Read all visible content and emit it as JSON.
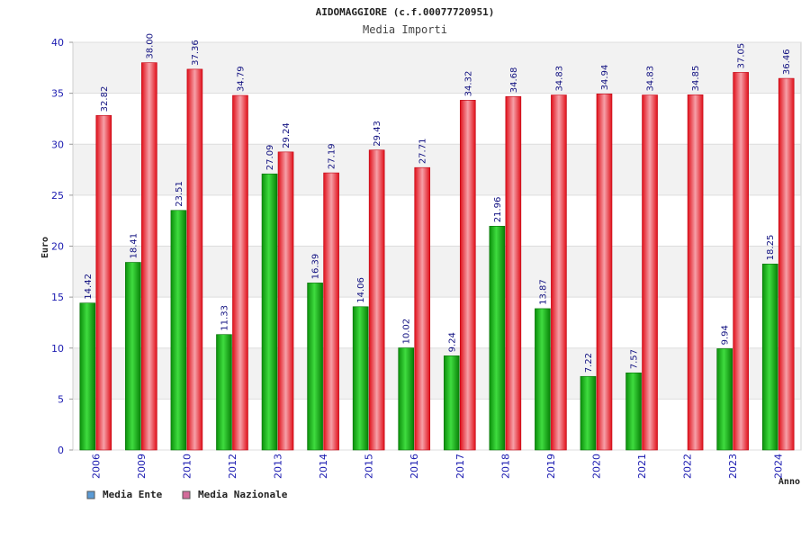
{
  "chart_data": {
    "type": "bar",
    "title": "AIDOMAGGIORE (c.f.00077720951)",
    "subtitle": "Media Importi",
    "xlabel": "Anno",
    "ylabel": "Euro",
    "ylim": [
      0,
      40
    ],
    "yticks": [
      0,
      5,
      10,
      15,
      20,
      25,
      30,
      35,
      40
    ],
    "grid": true,
    "legend_position": "bottom-left",
    "categories": [
      "2006",
      "2009",
      "2010",
      "2012",
      "2013",
      "2014",
      "2015",
      "2016",
      "2017",
      "2018",
      "2019",
      "2020",
      "2021",
      "2022",
      "2023",
      "2024"
    ],
    "series": [
      {
        "name": "Media Ente",
        "legend_color": "#5b9bd5",
        "bar_color": "#0a9a0a",
        "values": [
          14.42,
          18.41,
          23.51,
          11.33,
          27.09,
          16.39,
          14.06,
          10.02,
          9.24,
          21.96,
          13.87,
          7.22,
          7.57,
          null,
          9.94,
          18.25
        ],
        "labels": [
          "14.42",
          "18.41",
          "23.51",
          "11.33",
          "27.09",
          "16.39",
          "14.06",
          "10.02",
          "9.24",
          "21.96",
          "13.87",
          "7.22",
          "7.57",
          "",
          "9.94",
          "18.25"
        ]
      },
      {
        "name": "Media Nazionale",
        "legend_color": "#d36b9a",
        "bar_color": "#e8141e",
        "values": [
          32.82,
          38.0,
          37.36,
          34.79,
          29.24,
          27.19,
          29.43,
          27.71,
          34.32,
          34.68,
          34.83,
          34.94,
          34.83,
          34.85,
          37.05,
          36.46
        ],
        "labels": [
          "32.82",
          "38.00",
          "37.36",
          "34.79",
          "29.24",
          "27.19",
          "29.43",
          "27.71",
          "34.32",
          "34.68",
          "34.83",
          "34.94",
          "34.83",
          "34.85",
          "37.05",
          "36.46"
        ]
      }
    ]
  }
}
